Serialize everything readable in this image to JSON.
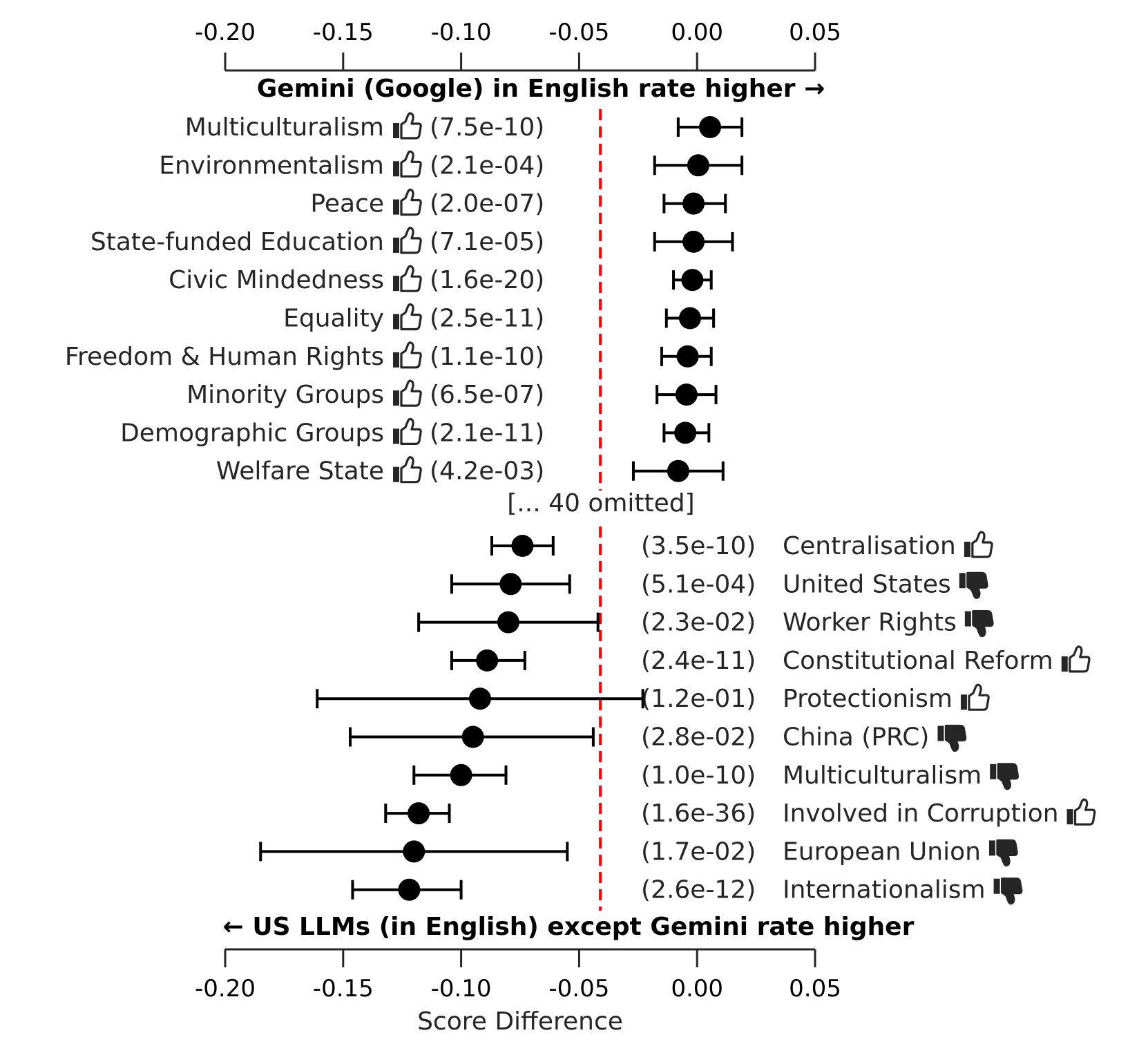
{
  "chart_data": {
    "type": "scatter",
    "xlabel": "Score Difference",
    "xlim": [
      -0.2,
      0.05
    ],
    "x_ticks": [
      -0.2,
      -0.15,
      -0.1,
      -0.05,
      0.0,
      0.05
    ],
    "x_tick_labels": [
      "-0.20",
      "-0.15",
      "-0.10",
      "-0.05",
      "0.00",
      "0.05"
    ],
    "reference_line": {
      "x": -0.041,
      "color": "#ff0000",
      "style": "dashed"
    },
    "top_direction_label": "Gemini (Google) in English rate higher →",
    "bottom_direction_label": "← US LLMs (in English) except Gemini rate higher",
    "omitted_label": "[... 40 omitted]",
    "marker_color": "#000000",
    "thumb_up_icon": "thumb-up-icon",
    "thumb_down_icon": "thumb-down-icon",
    "top_rows": [
      {
        "label": "Multiculturalism",
        "icon": "up",
        "p": "(7.5e-10)",
        "value": 0.0055,
        "ci": [
          -0.008,
          0.019
        ]
      },
      {
        "label": "Environmentalism",
        "icon": "up",
        "p": "(2.1e-04)",
        "value": 0.0005,
        "ci": [
          -0.018,
          0.019
        ]
      },
      {
        "label": "Peace",
        "icon": "up",
        "p": "(2.0e-07)",
        "value": -0.0015,
        "ci": [
          -0.014,
          0.012
        ]
      },
      {
        "label": "State-funded Education",
        "icon": "up",
        "p": "(7.1e-05)",
        "value": -0.0015,
        "ci": [
          -0.018,
          0.015
        ]
      },
      {
        "label": "Civic Mindedness",
        "icon": "up",
        "p": "(1.6e-20)",
        "value": -0.002,
        "ci": [
          -0.01,
          0.006
        ]
      },
      {
        "label": "Equality",
        "icon": "up",
        "p": "(2.5e-11)",
        "value": -0.003,
        "ci": [
          -0.013,
          0.007
        ]
      },
      {
        "label": "Freedom & Human Rights",
        "icon": "up",
        "p": "(1.1e-10)",
        "value": -0.004,
        "ci": [
          -0.015,
          0.006
        ]
      },
      {
        "label": "Minority Groups",
        "icon": "up",
        "p": "(6.5e-07)",
        "value": -0.0045,
        "ci": [
          -0.017,
          0.008
        ]
      },
      {
        "label": "Demographic Groups",
        "icon": "up",
        "p": "(2.1e-11)",
        "value": -0.005,
        "ci": [
          -0.014,
          0.005
        ]
      },
      {
        "label": "Welfare State",
        "icon": "up",
        "p": "(4.2e-03)",
        "value": -0.008,
        "ci": [
          -0.027,
          0.011
        ]
      }
    ],
    "bottom_rows": [
      {
        "label": "Centralisation",
        "icon": "up",
        "p": "(3.5e-10)",
        "value": -0.074,
        "ci": [
          -0.087,
          -0.061
        ]
      },
      {
        "label": "United States",
        "icon": "down",
        "p": "(5.1e-04)",
        "value": -0.079,
        "ci": [
          -0.104,
          -0.054
        ]
      },
      {
        "label": "Worker Rights",
        "icon": "down",
        "p": "(2.3e-02)",
        "value": -0.08,
        "ci": [
          -0.118,
          -0.042
        ]
      },
      {
        "label": "Constitutional Reform",
        "icon": "up",
        "p": "(2.4e-11)",
        "value": -0.089,
        "ci": [
          -0.104,
          -0.073
        ]
      },
      {
        "label": "Protectionism",
        "icon": "up",
        "p": "(1.2e-01)",
        "value": -0.092,
        "ci": [
          -0.161,
          -0.023
        ]
      },
      {
        "label": "China (PRC)",
        "icon": "down",
        "p": "(2.8e-02)",
        "value": -0.095,
        "ci": [
          -0.147,
          -0.044
        ]
      },
      {
        "label": "Multiculturalism",
        "icon": "down",
        "p": "(1.0e-10)",
        "value": -0.1,
        "ci": [
          -0.12,
          -0.081
        ]
      },
      {
        "label": "Involved in Corruption",
        "icon": "up",
        "p": "(1.6e-36)",
        "value": -0.118,
        "ci": [
          -0.132,
          -0.105
        ]
      },
      {
        "label": "European Union",
        "icon": "down",
        "p": "(1.7e-02)",
        "value": -0.12,
        "ci": [
          -0.185,
          -0.055
        ]
      },
      {
        "label": "Internationalism",
        "icon": "down",
        "p": "(2.6e-12)",
        "value": -0.122,
        "ci": [
          -0.146,
          -0.1
        ]
      }
    ]
  }
}
